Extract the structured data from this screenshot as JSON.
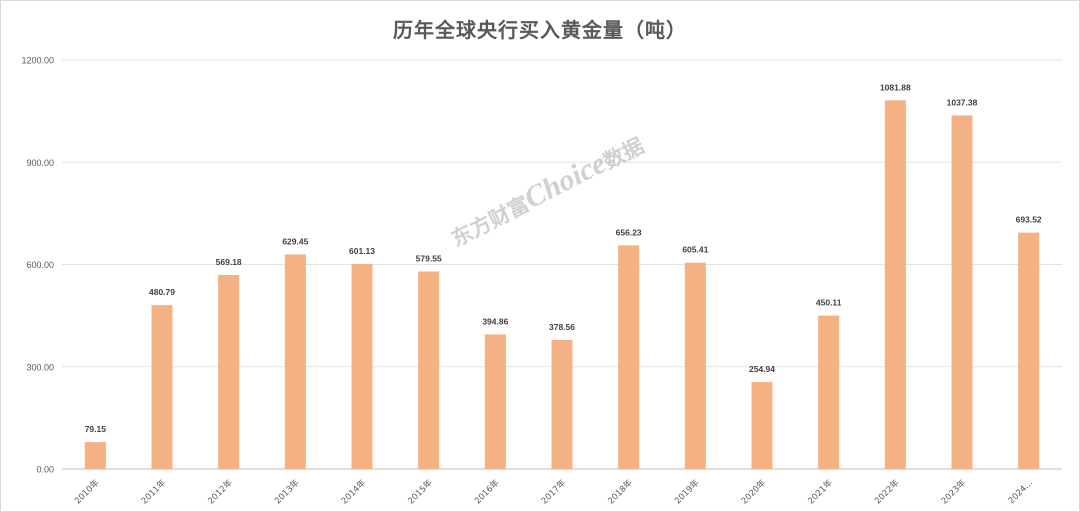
{
  "chart_data": {
    "type": "bar",
    "title": "历年全球央行买入黄金量（吨）",
    "categories": [
      "2010年",
      "2011年",
      "2012年",
      "2013年",
      "2014年",
      "2015年",
      "2016年",
      "2017年",
      "2018年",
      "2019年",
      "2020年",
      "2021年",
      "2022年",
      "2023年",
      "2024..."
    ],
    "values": [
      79.15,
      480.79,
      569.18,
      629.45,
      601.13,
      579.55,
      394.86,
      378.56,
      656.23,
      605.41,
      254.94,
      450.11,
      1081.88,
      1037.38,
      693.52
    ],
    "value_labels": [
      "79.15",
      "480.79",
      "569.18",
      "629.45",
      "601.13",
      "579.55",
      "394.86",
      "378.56",
      "656.23",
      "605.41",
      "254.94",
      "450.11",
      "1081.88",
      "1037.38",
      "693.52"
    ],
    "yticks": [
      0,
      300,
      600,
      900,
      1200
    ],
    "ytick_labels": [
      "0.00",
      "300.00",
      "600.00",
      "900.00",
      "1200.00"
    ],
    "ylim": [
      0,
      1200
    ],
    "xlabel": "",
    "ylabel": "",
    "grid": true,
    "bar_color": "#f4b183",
    "watermark": "东方财富Choice数据"
  },
  "watermark_parts": [
    "东方财富",
    "Choice",
    "数据"
  ]
}
